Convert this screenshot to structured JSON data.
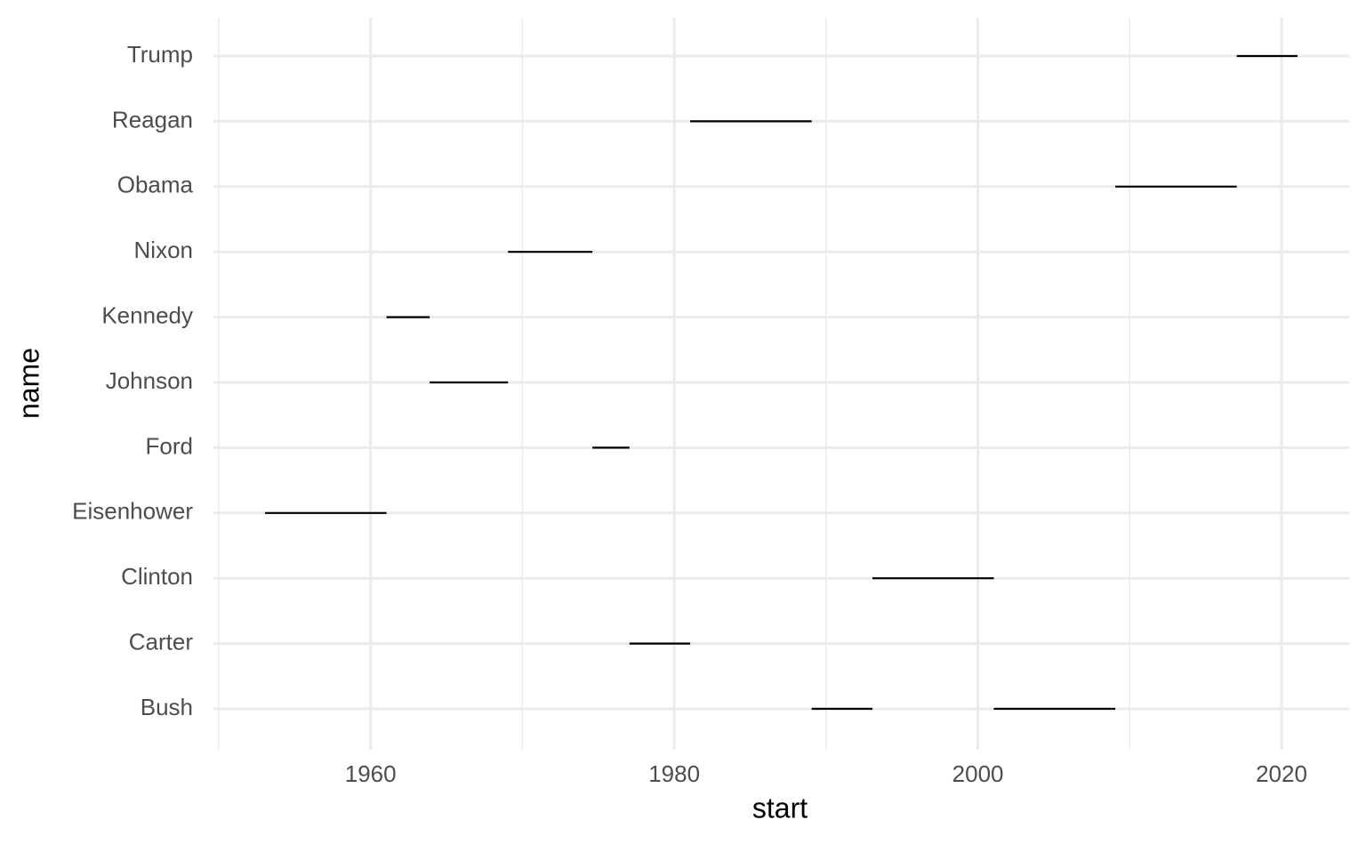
{
  "chart_data": {
    "type": "segment",
    "x_label": "start",
    "y_label": "name",
    "categories": [
      "Bush",
      "Carter",
      "Clinton",
      "Eisenhower",
      "Ford",
      "Johnson",
      "Kennedy",
      "Nixon",
      "Obama",
      "Reagan",
      "Trump"
    ],
    "y": [
      "Eisenhower",
      "Kennedy",
      "Johnson",
      "Nixon",
      "Ford",
      "Carter",
      "Reagan",
      "Bush",
      "Clinton",
      "Bush",
      "Obama",
      "Trump"
    ],
    "x_start": [
      1953.05,
      1961.05,
      1963.89,
      1969.05,
      1974.61,
      1977.05,
      1981.05,
      1989.05,
      1993.05,
      2001.05,
      2009.05,
      2017.05
    ],
    "x_end": [
      1961.05,
      1963.89,
      1969.05,
      1974.61,
      1977.05,
      1981.05,
      1989.05,
      1993.05,
      2001.05,
      2009.05,
      2017.05,
      2021.05
    ],
    "color": "#000000",
    "xlim": [
      1949.65,
      2024.45
    ],
    "xticks": [
      1960,
      1980,
      2000,
      2020
    ],
    "xminorticks": [
      1950,
      1970,
      1990,
      2010
    ],
    "grid": true
  }
}
